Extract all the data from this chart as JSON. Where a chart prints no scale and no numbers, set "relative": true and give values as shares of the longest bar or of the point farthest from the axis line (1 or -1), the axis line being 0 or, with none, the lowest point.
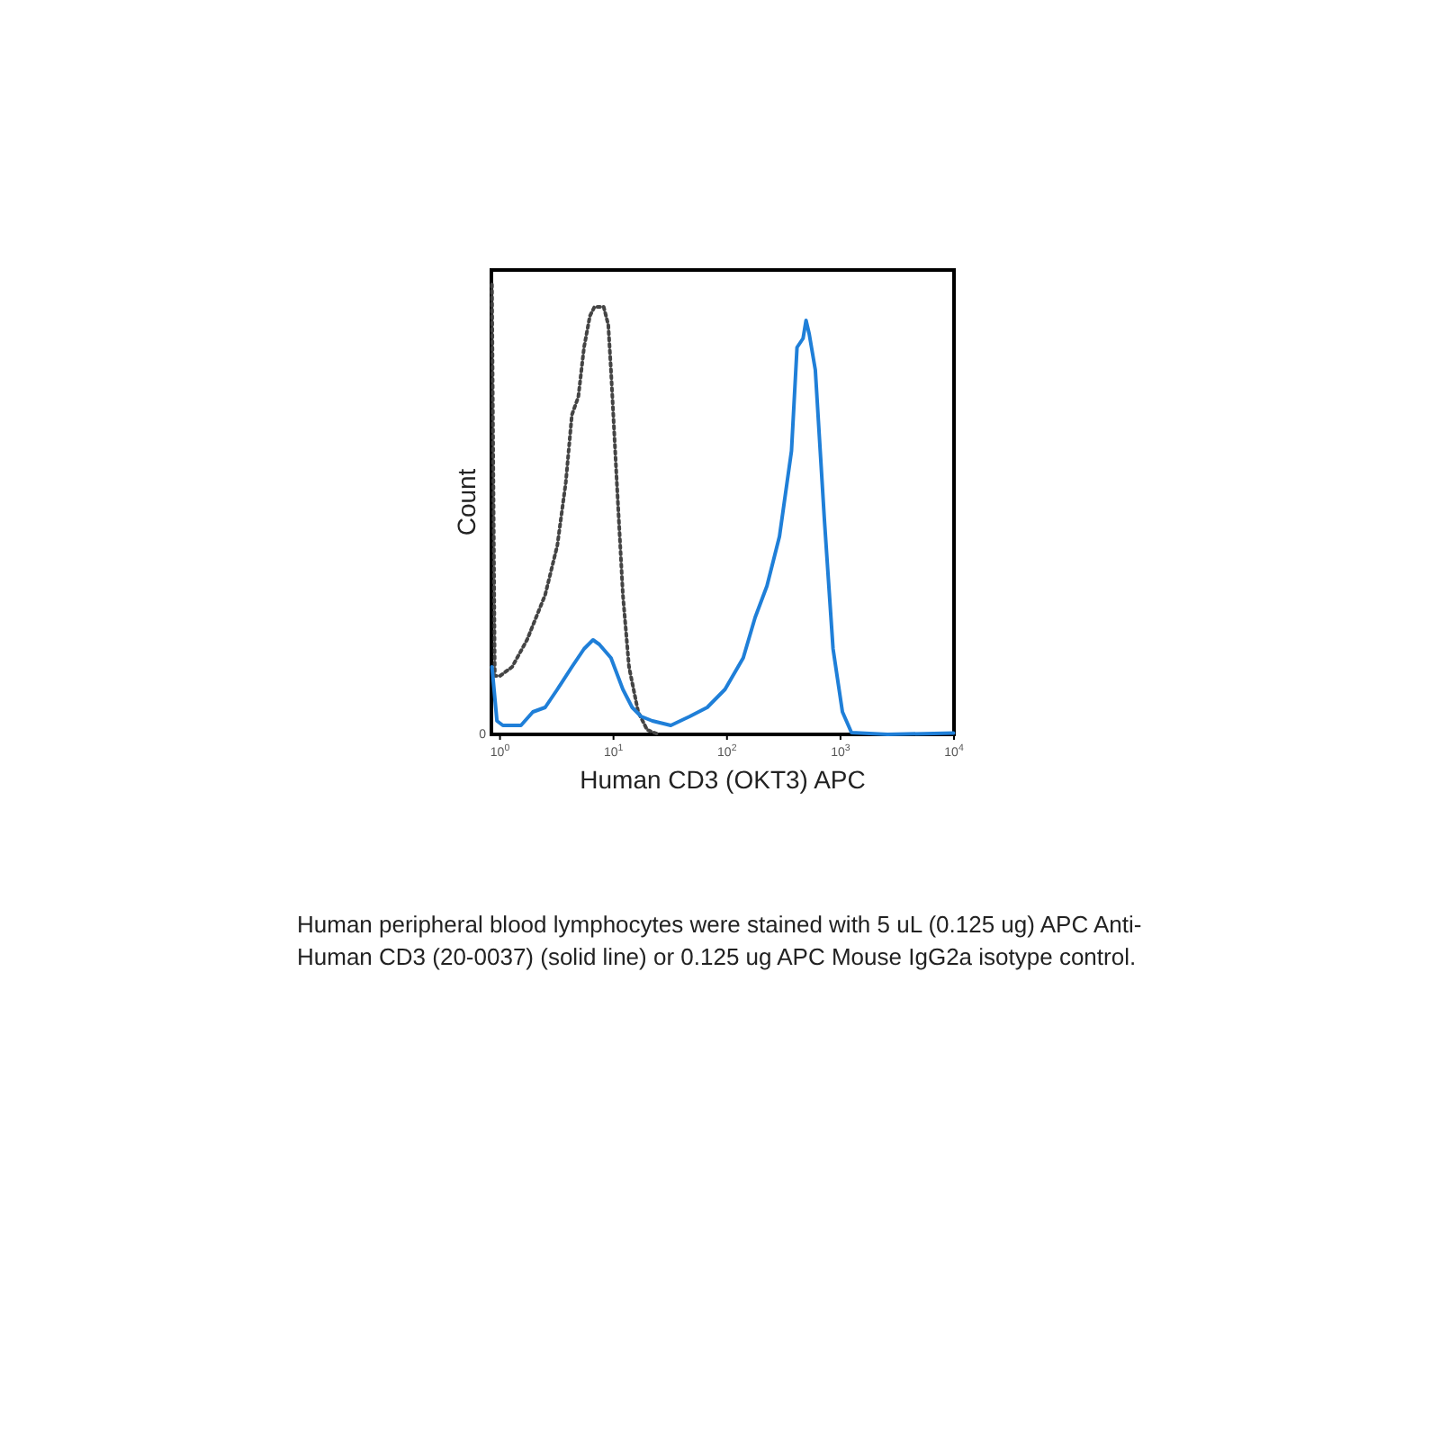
{
  "chart_data": {
    "type": "line",
    "xlabel": "Human CD3 (OKT3) APC",
    "ylabel": "Count",
    "log": "x",
    "relative": true,
    "xlim": [
      0.84,
      10000
    ],
    "xticks": [
      {
        "value": 1,
        "label": "10$^{0}$"
      },
      {
        "value": 10,
        "label": "10$^{1}$"
      },
      {
        "value": 100,
        "label": "10$^{2}$"
      },
      {
        "value": 1000,
        "label": "10$^{3}$"
      },
      {
        "value": 10000,
        "label": "10$^{4}$"
      }
    ],
    "grid": false,
    "marker": "none",
    "series": [
      {
        "color": "#444444",
        "line_style": "dotted",
        "x": [
          0.85,
          0.9,
          1,
          1.28,
          1.73,
          2.5,
          3.2,
          3.8,
          4.3,
          4.9,
          5.5,
          6.2,
          6.8,
          7.5,
          8.2,
          9,
          9.5,
          10.7,
          12.1,
          13.7,
          16.5,
          19.8,
          25
        ],
        "values": [
          1.0,
          0.13,
          0.13,
          0.15,
          0.21,
          0.31,
          0.42,
          0.56,
          0.71,
          0.75,
          0.86,
          0.93,
          0.95,
          0.95,
          0.95,
          0.91,
          0.81,
          0.56,
          0.31,
          0.15,
          0.05,
          0.01,
          0
        ]
      },
      {
        "color": "#1f7fd8",
        "line_style": "solid",
        "x": [
          0.85,
          0.94,
          1.06,
          1.53,
          1.95,
          2.5,
          3.2,
          4.3,
          5.5,
          6.6,
          7.5,
          9.5,
          12.1,
          14.6,
          17.5,
          22,
          32,
          47,
          67,
          96,
          139,
          177,
          225,
          290,
          370,
          414,
          468,
          497,
          530,
          600,
          720,
          860,
          1040,
          1250,
          2600,
          9900
        ],
        "values": [
          0.15,
          0.03,
          0.02,
          0.02,
          0.05,
          0.06,
          0.1,
          0.15,
          0.19,
          0.21,
          0.2,
          0.17,
          0.1,
          0.06,
          0.04,
          0.03,
          0.02,
          0.04,
          0.06,
          0.1,
          0.17,
          0.26,
          0.33,
          0.44,
          0.63,
          0.86,
          0.88,
          0.92,
          0.89,
          0.81,
          0.48,
          0.19,
          0.05,
          0.004,
          0,
          0.003
        ]
      }
    ],
    "annotations": [
      "0",
      "Human peripheral blood lymphocytes were stained with 5 uL (0.125 ug) APC Anti-Human CD3 (20-0037) (solid line) or 0.125 ug APC Mouse IgG2a isotype control."
    ]
  }
}
